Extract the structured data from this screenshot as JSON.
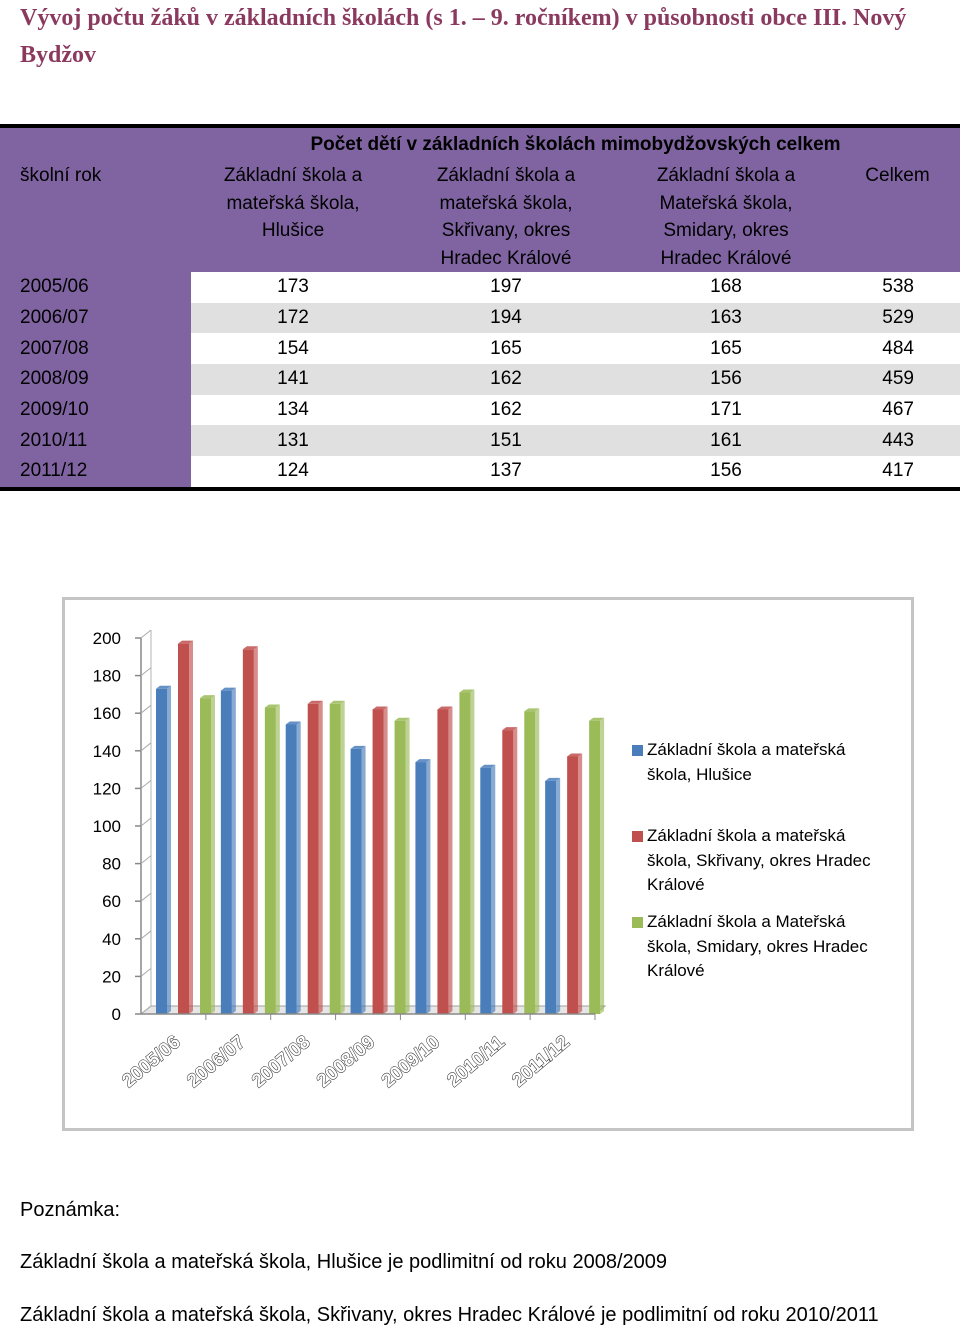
{
  "title": "Vývoj počtu žáků v základních školách (s 1. – 9. ročníkem) v působnosti obce III. Nový Bydžov",
  "table": {
    "super_header": "Počet dětí v základních školách mimobydžovských celkem",
    "row_header_label": "školní rok",
    "columns": [
      [
        "Základní škola a",
        "mateřská škola,",
        "Hlušice"
      ],
      [
        "Základní škola a",
        "mateřská škola,",
        "Skřivany, okres",
        "Hradec Králové"
      ],
      [
        "Základní škola a",
        "Mateřská škola,",
        "Smidary, okres",
        "Hradec Králové"
      ],
      [
        "Celkem"
      ]
    ],
    "rows": [
      {
        "year": "2005/06",
        "values": [
          "173",
          "197",
          "168",
          "538"
        ]
      },
      {
        "year": "2006/07",
        "values": [
          "172",
          "194",
          "163",
          "529"
        ]
      },
      {
        "year": "2007/08",
        "values": [
          "154",
          "165",
          "165",
          "484"
        ]
      },
      {
        "year": "2008/09",
        "values": [
          "141",
          "162",
          "156",
          "459"
        ]
      },
      {
        "year": "2009/10",
        "values": [
          "134",
          "162",
          "171",
          "467"
        ]
      },
      {
        "year": "2010/11",
        "values": [
          "131",
          "151",
          "161",
          "443"
        ]
      },
      {
        "year": "2011/12",
        "values": [
          "124",
          "137",
          "156",
          "417"
        ]
      }
    ]
  },
  "chart_data": {
    "type": "bar",
    "title": "",
    "xlabel": "",
    "ylabel": "",
    "ylim": [
      0,
      200
    ],
    "yticks": [
      "0",
      "20",
      "40",
      "60",
      "80",
      "100",
      "120",
      "140",
      "160",
      "180",
      "200"
    ],
    "categories": [
      "2005/06",
      "2006/07",
      "2007/08",
      "2008/09",
      "2009/10",
      "2010/11",
      "2011/12"
    ],
    "series": [
      {
        "name": "Základní škola a mateřská škola, Hlušice",
        "legend_lines": [
          "Základní škola a mateřská",
          "škola, Hlušice"
        ],
        "color": "#4a7ebb",
        "values": [
          173,
          172,
          154,
          141,
          134,
          131,
          124
        ]
      },
      {
        "name": "Základní škola a mateřská škola, Skřivany, okres Hradec Králové",
        "legend_lines": [
          "Základní škola a mateřská",
          "škola, Skřivany, okres Hradec",
          "Králové"
        ],
        "color": "#c0504d",
        "values": [
          197,
          194,
          165,
          162,
          162,
          151,
          137
        ]
      },
      {
        "name": "Základní škola a Mateřská škola, Smidary, okres Hradec Králové",
        "legend_lines": [
          "Základní škola a Mateřská",
          "škola, Smidary, okres Hradec",
          "Králové"
        ],
        "color": "#9bbb59",
        "values": [
          168,
          163,
          165,
          156,
          171,
          161,
          156
        ]
      }
    ],
    "grid": false,
    "legend_position": "right"
  },
  "notes": {
    "heading": "Poznámka:",
    "lines": [
      "Základní škola a mateřská škola, Hlušice je podlimitní od roku 2008/2009",
      "Základní škola a mateřská škola, Skřivany, okres Hradec Králové je podlimitní od roku 2010/2011"
    ]
  }
}
